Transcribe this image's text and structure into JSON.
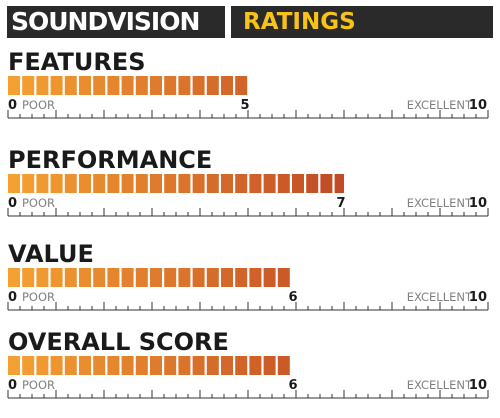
{
  "header": {
    "brand": "SOUNDVISION",
    "title": "RATINGS"
  },
  "chart_data": {
    "type": "bar",
    "orientation": "horizontal",
    "xlim": [
      0,
      10
    ],
    "scale_min_label": "POOR",
    "scale_max_label": "EXCELLENT",
    "categories": [
      "FEATURES",
      "PERFORMANCE",
      "VALUE",
      "OVERALL SCORE"
    ],
    "values": [
      5,
      7,
      6,
      6
    ],
    "colors": {
      "bar_start": "#f5a032",
      "bar_end": "#a8221f",
      "axis": "#333333"
    }
  }
}
